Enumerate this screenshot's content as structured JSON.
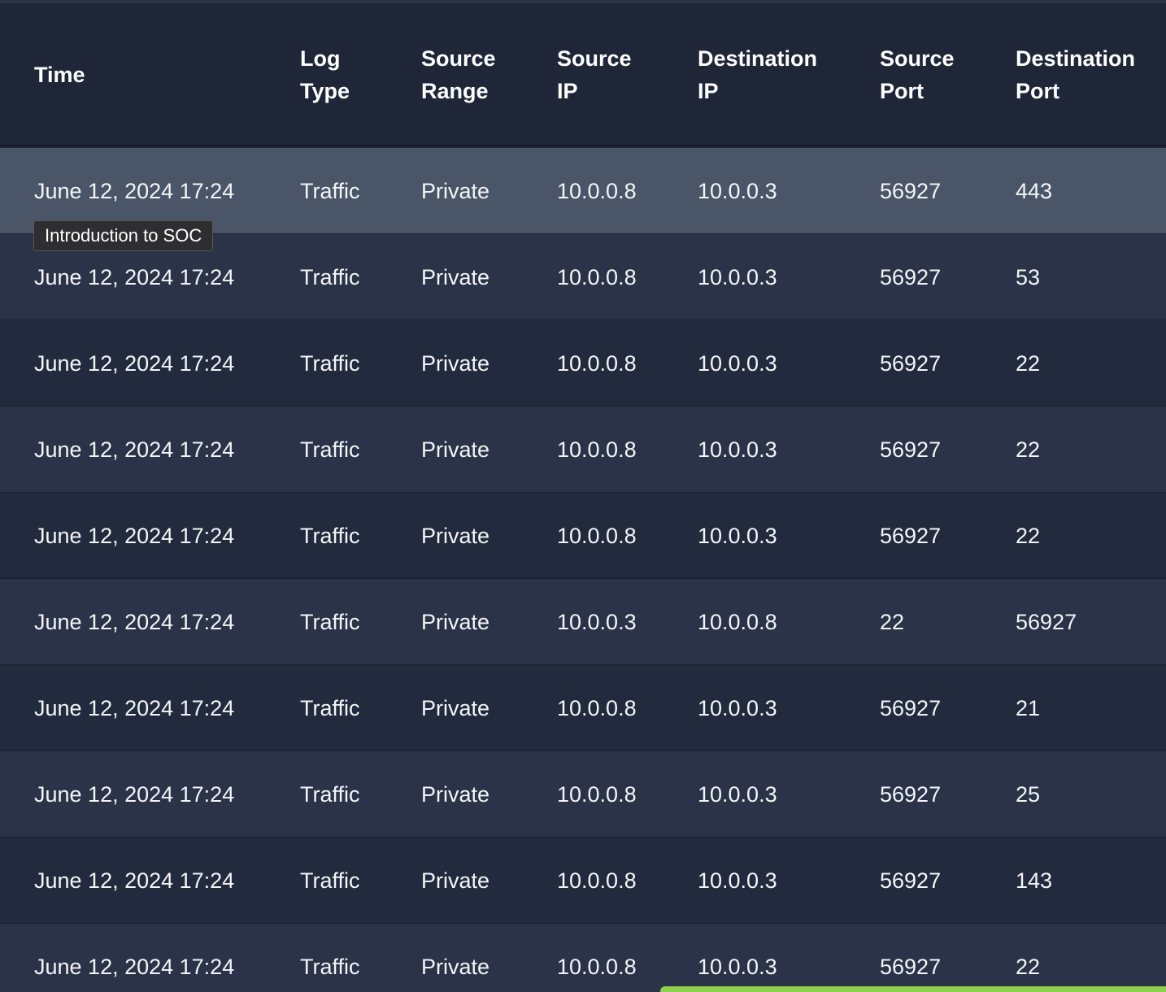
{
  "table": {
    "headers": [
      "Time",
      "Log\nType",
      "Source\nRange",
      "Source\nIP",
      "Destination\nIP",
      "Source\nPort",
      "Destination\nPort"
    ],
    "rows": [
      [
        "June 12, 2024 17:24",
        "Traffic",
        "Private",
        "10.0.0.8",
        "10.0.0.3",
        "56927",
        "443"
      ],
      [
        "June 12, 2024 17:24",
        "Traffic",
        "Private",
        "10.0.0.8",
        "10.0.0.3",
        "56927",
        "53"
      ],
      [
        "June 12, 2024 17:24",
        "Traffic",
        "Private",
        "10.0.0.8",
        "10.0.0.3",
        "56927",
        "22"
      ],
      [
        "June 12, 2024 17:24",
        "Traffic",
        "Private",
        "10.0.0.8",
        "10.0.0.3",
        "56927",
        "22"
      ],
      [
        "June 12, 2024 17:24",
        "Traffic",
        "Private",
        "10.0.0.8",
        "10.0.0.3",
        "56927",
        "22"
      ],
      [
        "June 12, 2024 17:24",
        "Traffic",
        "Private",
        "10.0.0.3",
        "10.0.0.8",
        "22",
        "56927"
      ],
      [
        "June 12, 2024 17:24",
        "Traffic",
        "Private",
        "10.0.0.8",
        "10.0.0.3",
        "56927",
        "21"
      ],
      [
        "June 12, 2024 17:24",
        "Traffic",
        "Private",
        "10.0.0.8",
        "10.0.0.3",
        "56927",
        "25"
      ],
      [
        "June 12, 2024 17:24",
        "Traffic",
        "Private",
        "10.0.0.8",
        "10.0.0.3",
        "56927",
        "143"
      ],
      [
        "June 12, 2024 17:24",
        "Traffic",
        "Private",
        "10.0.0.8",
        "10.0.0.3",
        "56927",
        "22"
      ]
    ]
  },
  "tooltip": {
    "text": "Introduction to SOC"
  },
  "colors": {
    "background": "#1f2638",
    "row_odd": "#2a3347",
    "row_even": "#222a3d",
    "row_hovered": "#4a5567",
    "accent_bar": "#8fd14f"
  }
}
